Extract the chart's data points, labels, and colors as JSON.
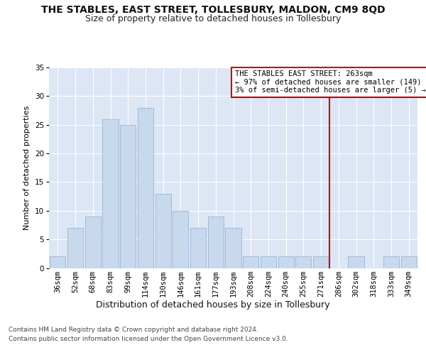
{
  "title": "THE STABLES, EAST STREET, TOLLESBURY, MALDON, CM9 8QD",
  "subtitle": "Size of property relative to detached houses in Tollesbury",
  "xlabel": "Distribution of detached houses by size in Tollesbury",
  "ylabel": "Number of detached properties",
  "bar_labels": [
    "36sqm",
    "52sqm",
    "68sqm",
    "83sqm",
    "99sqm",
    "114sqm",
    "130sqm",
    "146sqm",
    "161sqm",
    "177sqm",
    "193sqm",
    "208sqm",
    "224sqm",
    "240sqm",
    "255sqm",
    "271sqm",
    "286sqm",
    "302sqm",
    "318sqm",
    "333sqm",
    "349sqm"
  ],
  "bar_values": [
    2,
    7,
    9,
    26,
    25,
    28,
    13,
    10,
    7,
    9,
    7,
    2,
    2,
    2,
    2,
    2,
    0,
    2,
    0,
    2,
    2
  ],
  "bar_color": "#c8d9ed",
  "bar_edgecolor": "#9ab5d4",
  "vline_x": 15.5,
  "vline_color": "#cc0000",
  "annotation_text": "THE STABLES EAST STREET: 263sqm\n← 97% of detached houses are smaller (149)\n3% of semi-detached houses are larger (5) →",
  "annotation_box_facecolor": "#ffffff",
  "annotation_box_edgecolor": "#cc0000",
  "ylim": [
    0,
    35
  ],
  "yticks": [
    0,
    5,
    10,
    15,
    20,
    25,
    30,
    35
  ],
  "background_color": "#dce6f5",
  "footer_line1": "Contains HM Land Registry data © Crown copyright and database right 2024.",
  "footer_line2": "Contains public sector information licensed under the Open Government Licence v3.0.",
  "title_fontsize": 10,
  "subtitle_fontsize": 9,
  "xlabel_fontsize": 9,
  "ylabel_fontsize": 8,
  "tick_fontsize": 7.5,
  "annotation_fontsize": 7.5,
  "footer_fontsize": 6.5
}
